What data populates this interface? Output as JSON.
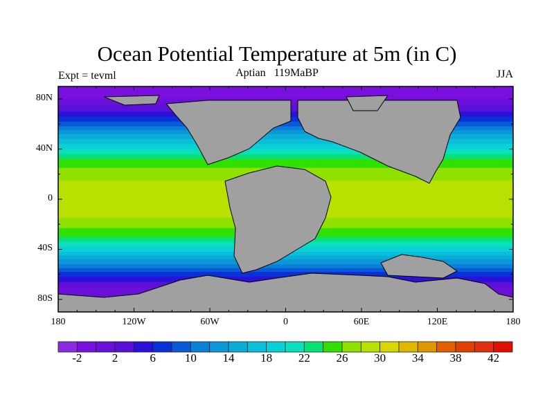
{
  "chart_data": {
    "type": "heatmap",
    "title": "Ocean Potential Temperature at 5m (in C)",
    "subtitle": "Aptian   119MaBP",
    "left_label": "Expt = tevml",
    "right_label": "JJA",
    "x_ticks": [
      "180",
      "120W",
      "60W",
      "0",
      "60E",
      "120E",
      "180"
    ],
    "x_values": [
      -180,
      -120,
      -60,
      0,
      60,
      120,
      180
    ],
    "y_ticks": [
      "80N",
      "40N",
      "0",
      "40S",
      "80S"
    ],
    "y_values": [
      80,
      40,
      0,
      -40,
      -80
    ],
    "xlim": [
      -180,
      180
    ],
    "ylim": [
      -90,
      90
    ],
    "zonal_mean_temperature": {
      "lat": [
        90,
        80,
        70,
        60,
        50,
        40,
        30,
        20,
        10,
        0,
        -10,
        -20,
        -30,
        -40,
        -50,
        -60,
        -70,
        -80,
        -90
      ],
      "value": [
        -1,
        0,
        4,
        9,
        15,
        20,
        25,
        27,
        29,
        30,
        29,
        27,
        24,
        19,
        13,
        7,
        2,
        0,
        -1
      ]
    },
    "colorbar": {
      "levels": [
        -2,
        0,
        2,
        4,
        6,
        8,
        10,
        12,
        14,
        16,
        18,
        20,
        22,
        24,
        26,
        28,
        30,
        32,
        34,
        36,
        38,
        40,
        42
      ],
      "labels": [
        "-2",
        "2",
        "6",
        "10",
        "14",
        "18",
        "22",
        "26",
        "30",
        "34",
        "38",
        "42"
      ],
      "colors": [
        "#8a2be2",
        "#7a10e0",
        "#6a10d8",
        "#5a10d8",
        "#2a10d8",
        "#0a30d8",
        "#0a5ad8",
        "#0a80d8",
        "#0a98d8",
        "#0aacd8",
        "#0ac0d8",
        "#0ad0d8",
        "#0ae0c0",
        "#0ae078",
        "#30e000",
        "#90e000",
        "#b8e000",
        "#d8d800",
        "#e0b800",
        "#e09800",
        "#e06000",
        "#e04000",
        "#e03010",
        "#e01000"
      ]
    },
    "land_color": "#a0a0a0"
  }
}
